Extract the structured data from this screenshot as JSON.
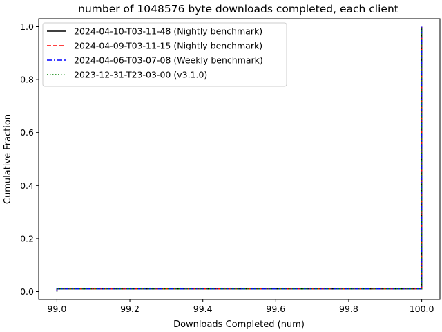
{
  "chart_data": {
    "type": "line",
    "title": "number of 1048576 byte downloads completed, each client",
    "xlabel": "Downloads Completed (num)",
    "ylabel": "Cumulative Fraction",
    "xlim": [
      98.95,
      100.05
    ],
    "ylim": [
      -0.03,
      1.03
    ],
    "xticks": [
      99.0,
      99.2,
      99.4,
      99.6,
      99.8,
      100.0
    ],
    "xtick_labels": [
      "99.0",
      "99.2",
      "99.4",
      "99.6",
      "99.8",
      "100.0"
    ],
    "yticks": [
      0.0,
      0.2,
      0.4,
      0.6,
      0.8,
      1.0
    ],
    "ytick_labels": [
      "0.0",
      "0.2",
      "0.4",
      "0.6",
      "0.8",
      "1.0"
    ],
    "grid": false,
    "legend_position": "top-left",
    "series": [
      {
        "name": "2024-04-10-T03-11-48 (Nightly benchmark)",
        "color": "#000000",
        "dash": "solid",
        "x": [
          99.0,
          99.0,
          100.0,
          100.0
        ],
        "y": [
          0.0,
          0.01,
          0.01,
          1.0
        ]
      },
      {
        "name": "2024-04-09-T03-11-15 (Nightly benchmark)",
        "color": "#ff0000",
        "dash": "dashed",
        "x": [
          99.0,
          99.0,
          100.0,
          100.0
        ],
        "y": [
          0.0,
          0.01,
          0.01,
          1.0
        ]
      },
      {
        "name": "2024-04-06-T03-07-08 (Weekly benchmark)",
        "color": "#0000ff",
        "dash": "dashdot",
        "x": [
          99.0,
          99.0,
          100.0,
          100.0
        ],
        "y": [
          0.0,
          0.01,
          0.01,
          1.0
        ]
      },
      {
        "name": "2023-12-31-T23-03-00 (v3.1.0)",
        "color": "#008000",
        "dash": "dotted",
        "x": [
          99.0,
          99.0,
          100.0,
          100.0
        ],
        "y": [
          0.0,
          0.01,
          0.01,
          1.0
        ]
      }
    ]
  }
}
